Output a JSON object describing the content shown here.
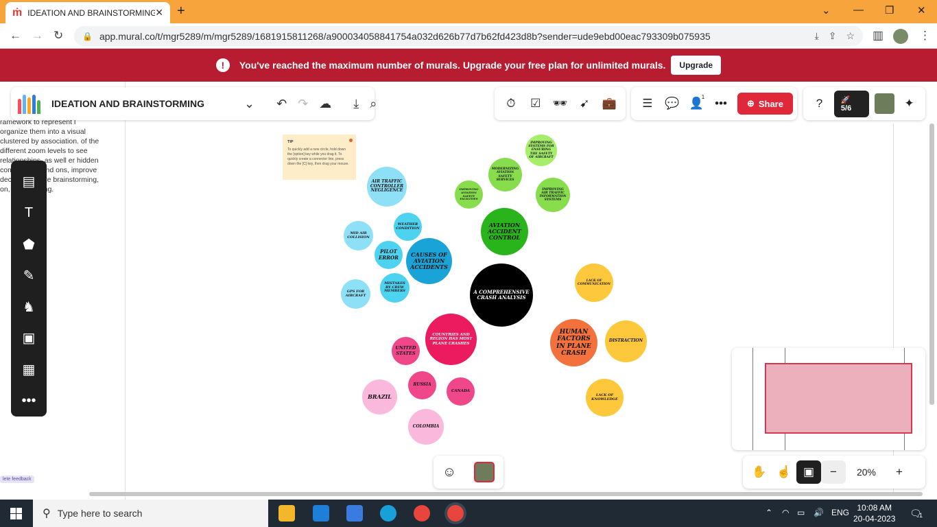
{
  "browser": {
    "tab_title": "IDEATION AND BRAINSTORMING",
    "url": "app.mural.co/t/mgr5289/m/mgr5289/1681915811268/a900034058841754a032d626b77d7b62fd423d8b?sender=ude9ebd00eac793309b075935"
  },
  "banner": {
    "message": "You've reached the maximum number of murals. Upgrade your free plan for unlimited murals.",
    "button": "Upgrade"
  },
  "toolbar": {
    "mural_title": "IDEATION AND BRAINSTORMING",
    "share_label": "Share",
    "collaborator_count": "1",
    "rocket_label": "5/6"
  },
  "left_panel": {
    "text": "ramework to represent l organize them into a visual clustered by association. of the different zoom levels to see relationships, as well er hidden complexities and ons, improve decision ffective brainstorming, on, and learning.",
    "feedback": "lete feedback"
  },
  "tip": {
    "title": "TIP",
    "body": "To quickly add a new circle, hold down the [option] key while you drag it. To quickly create a connector line, press down the [C] key, then drag your mouse."
  },
  "mindmap": {
    "center": "A COMPREHENSIVE CRASH ANALYSIS",
    "causes": "CAUSES OF AVIATION ACCIDENTS",
    "air_traffic": "AIR TRAFFIC CONTROLLER NEGLIGENCE",
    "weather": "WEATHER CONDITION",
    "midair": "MID AIR COLLISION",
    "pilot": "PILOT ERROR",
    "crew": "MISTAKES BY CREW MEMBERS",
    "gps": "GPS FOR AIRCRAFT",
    "control": "AVIATION ACCIDENT CONTROL",
    "improving_systems": "IMPROVING SYSTEMS FOR ENSURING THE SAFETY OF AIRCRAFT",
    "modernizing": "MODERNIZING AVIATION SAFETY SERVICES",
    "improving_facilities": "IMPROVING AVIATION SAFETY FACILITIES",
    "improving_atis": "IMPROVING AIR TRAFFIC INFORMATION SYSTEMS",
    "human": "HUMAN FACTORS IN PLANE CRASH",
    "communication": "LACK OF COMMUNICATION",
    "distraction": "DISTRACTION",
    "knowledge": "LACK OF KNOWLEDGE",
    "countries": "COUNTRIES AND REGION HAS MOST PLANE CRASHES",
    "us": "UNITED STATES",
    "russia": "RUSSIA",
    "canada": "CANADA",
    "brazil": "BRAZIL",
    "colombia": "COLOMBIA"
  },
  "zoom": {
    "value": "20%"
  },
  "taskbar": {
    "search_placeholder": "Type here to search",
    "lang": "ENG",
    "time": "10:08 AM",
    "date": "20-04-2023",
    "notif": "1"
  },
  "colors": {
    "accent": "#e0283b",
    "banner": "#b71c30",
    "causes": "#1aa3d6",
    "control": "#2ab41c",
    "human": "#f2713c",
    "countries": "#ec1a5e"
  }
}
